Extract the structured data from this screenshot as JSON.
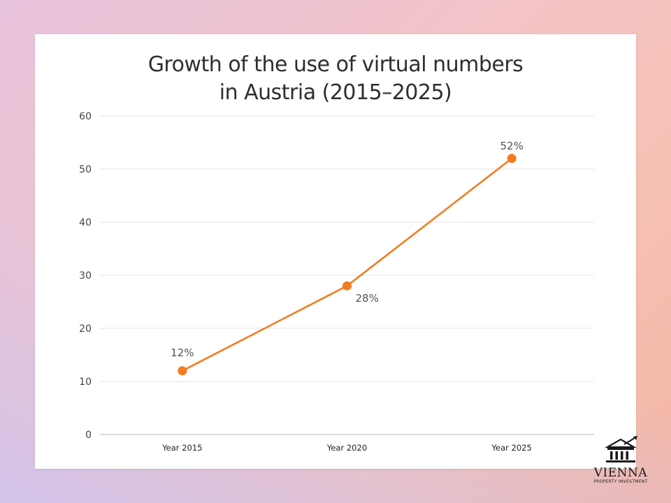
{
  "chart_data": {
    "type": "line",
    "title_lines": [
      "Growth of the use of virtual numbers",
      "in Austria (2015–2025)"
    ],
    "categories": [
      "Year 2015",
      "Year 2020",
      "Year 2025"
    ],
    "values": [
      12,
      28,
      52
    ],
    "data_labels": [
      "12%",
      "28%",
      "52%"
    ],
    "yticks": [
      0,
      10,
      20,
      30,
      40,
      50,
      60
    ],
    "ylim": [
      0,
      60
    ],
    "xlabel": "",
    "ylabel": "",
    "grid": true,
    "line_color": "#f47c20",
    "grid_color": "#e4e4e4"
  },
  "logo": {
    "name": "VIENNA",
    "subtitle": "PROPERTY INVESTMENT"
  }
}
